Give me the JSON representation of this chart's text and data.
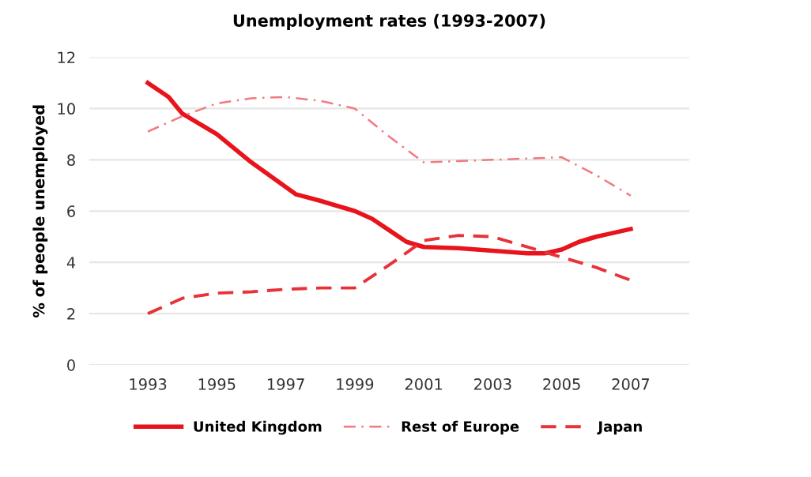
{
  "chart_data": {
    "type": "line",
    "title": "Unemployment rates (1993-2007)",
    "ylabel": "% of people unemployed",
    "xlim": [
      1991.3,
      2008.7
    ],
    "xticks": [
      1993,
      1995,
      1997,
      1999,
      2001,
      2003,
      2005,
      2007
    ],
    "ylim": [
      0,
      12
    ],
    "yticks": [
      0,
      2,
      4,
      6,
      8,
      10,
      12
    ],
    "grid": "y",
    "legend": "bottom",
    "marker": "none",
    "series": [
      {
        "name": "United Kingdom",
        "color": "#e8141c",
        "line_style": "solid",
        "x": [
          1993,
          1993.6,
          1994,
          1994.5,
          1995,
          1996,
          1997.3,
          1998,
          1999,
          1999.5,
          2000,
          2000.5,
          2001,
          2002,
          2003,
          2004,
          2004.5,
          2005,
          2005.5,
          2006,
          2007
        ],
        "values": [
          11.0,
          10.45,
          9.8,
          9.4,
          9.0,
          7.9,
          6.65,
          6.4,
          6.0,
          5.7,
          5.25,
          4.8,
          4.6,
          4.55,
          4.45,
          4.35,
          4.35,
          4.5,
          4.8,
          5.0,
          5.3
        ]
      },
      {
        "name": "Rest of Europe",
        "color": "#f07a80",
        "line_style": "dashdot",
        "x": [
          1993,
          1994,
          1995,
          1996,
          1997,
          1998,
          1999,
          2000,
          2001,
          2002,
          2003,
          2004,
          2005,
          2006,
          2007
        ],
        "values": [
          9.1,
          9.7,
          10.2,
          10.4,
          10.45,
          10.3,
          10.0,
          8.9,
          7.9,
          7.95,
          8.0,
          8.05,
          8.1,
          7.4,
          6.6
        ]
      },
      {
        "name": "Japan",
        "color": "#e8323a",
        "line_style": "dashed",
        "x": [
          1993,
          1994,
          1995,
          1996,
          1997,
          1998,
          1999,
          2000,
          2001,
          2002,
          2003,
          2004,
          2005,
          2006,
          2007
        ],
        "values": [
          2.0,
          2.6,
          2.8,
          2.85,
          2.95,
          3.0,
          3.0,
          3.9,
          4.85,
          5.05,
          5.0,
          4.6,
          4.2,
          3.8,
          3.3
        ]
      }
    ]
  }
}
